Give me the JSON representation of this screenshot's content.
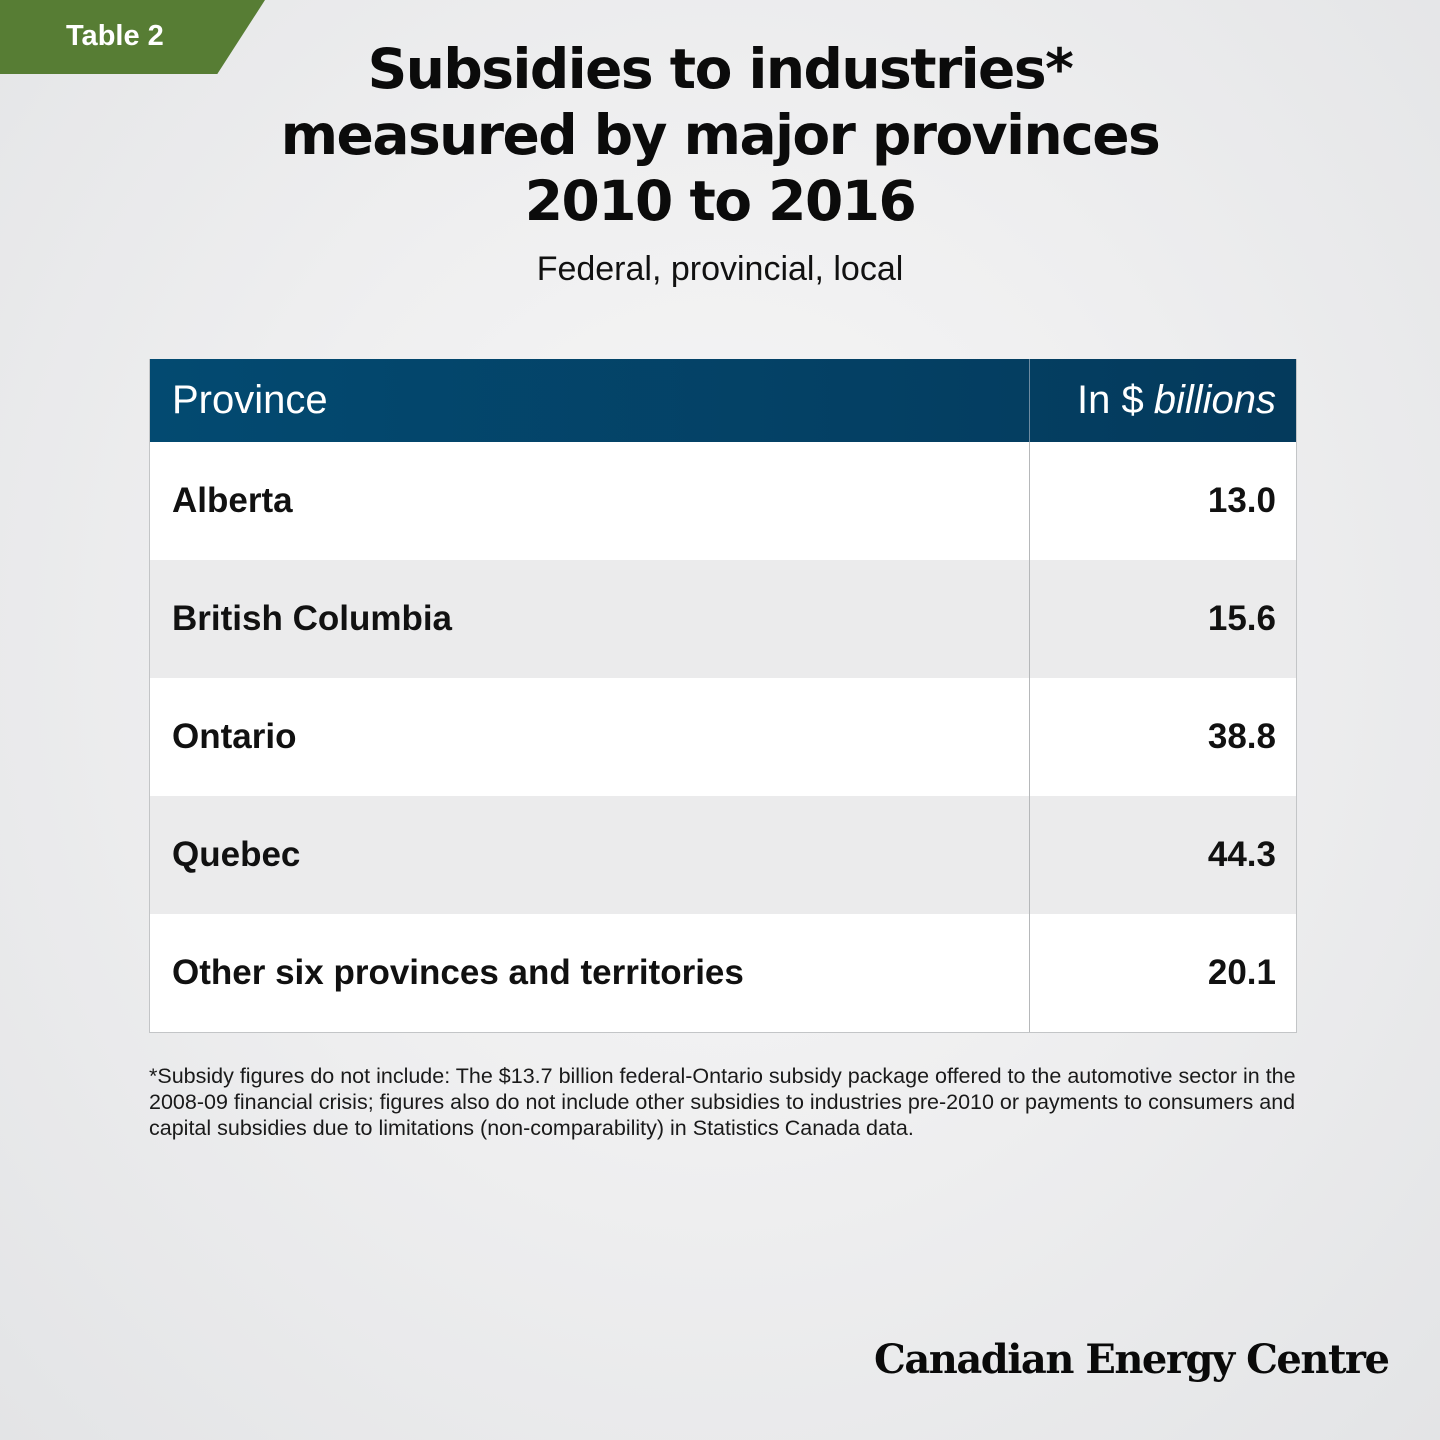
{
  "tag": {
    "label": "Table 2",
    "color": "#577d34"
  },
  "title": {
    "line1": "Subsidies to industries*",
    "line2": "measured by major provinces",
    "line3": "2010 to 2016"
  },
  "subtitle": "Federal, provincial, local",
  "table": {
    "header": {
      "col1": "Province",
      "col2_prefix": "In $",
      "col2_unit": "billions"
    },
    "rows": [
      {
        "province": "Alberta",
        "value": "13.0"
      },
      {
        "province": "British Columbia",
        "value": "15.6"
      },
      {
        "province": "Ontario",
        "value": "38.8"
      },
      {
        "province": "Quebec",
        "value": "44.3"
      },
      {
        "province": "Other six provinces and territories",
        "value": "20.1"
      }
    ]
  },
  "footnote": "*Subsidy figures do not include: The $13.7 billion federal-Ontario subsidy package offered to the automotive sector in the 2008-09 financial crisis; figures also do not include other subsidies to industries pre-2010 or payments to consumers and capital subsidies due to limitations (non-comparability) in Statistics Canada data.",
  "brand": "Canadian Energy Centre",
  "chart_data": {
    "type": "table",
    "title": "Subsidies to industries* measured by major provinces 2010 to 2016",
    "subtitle": "Federal, provincial, local",
    "columns": [
      "Province",
      "In $ billions"
    ],
    "categories": [
      "Alberta",
      "British Columbia",
      "Ontario",
      "Quebec",
      "Other six provinces and territories"
    ],
    "values": [
      13.0,
      15.6,
      38.8,
      44.3,
      20.1
    ],
    "unit": "$ billions"
  }
}
